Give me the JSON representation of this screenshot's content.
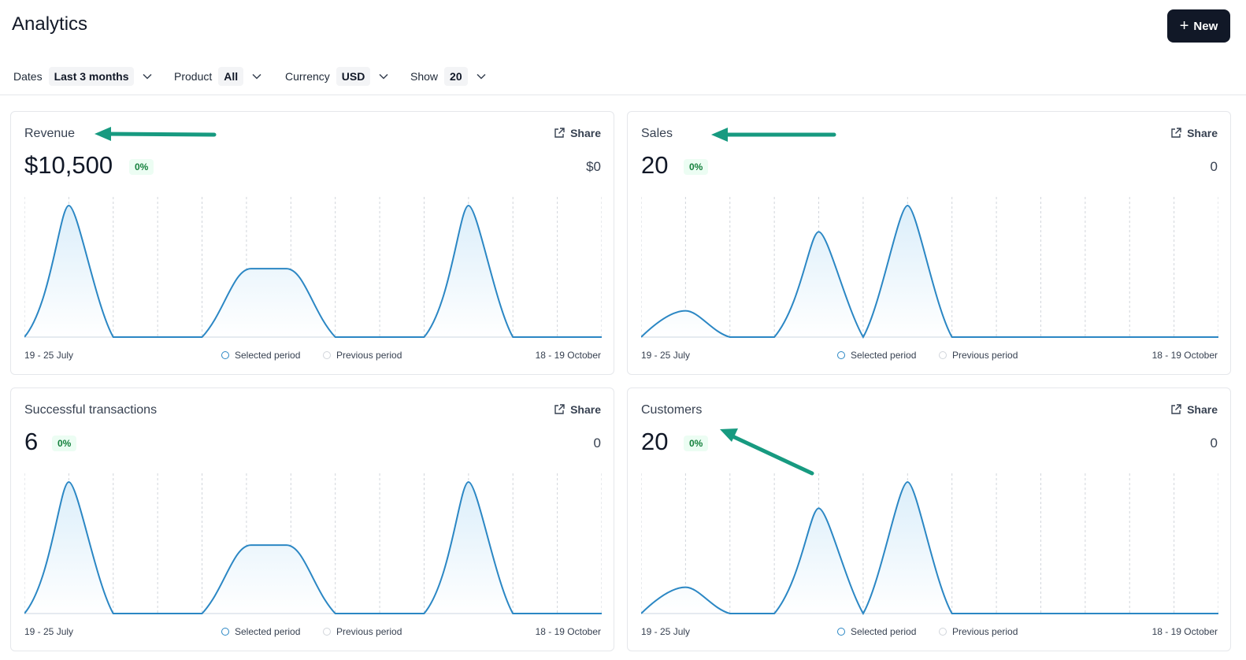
{
  "header": {
    "title": "Analytics",
    "new_button_label": "New"
  },
  "filters": [
    {
      "label": "Dates",
      "value": "Last 3 months"
    },
    {
      "label": "Product",
      "value": "All"
    },
    {
      "label": "Currency",
      "value": "USD"
    },
    {
      "label": "Show",
      "value": "20"
    }
  ],
  "common": {
    "share_label": "Share",
    "range_start": "19 - 25 July",
    "range_end": "18 - 19 October",
    "legend_selected": "Selected period",
    "legend_previous": "Previous period"
  },
  "colors": {
    "line": "#2b87c4",
    "fill": "#dbeefa",
    "badge_bg": "#ecfdf3",
    "badge_text": "#15803d",
    "annotation_arrow": "#179a80"
  },
  "cards": [
    {
      "title": "Revenue",
      "value": "$10,500",
      "change": "0%",
      "previous": "$0",
      "chart_data": {
        "type": "area",
        "x": [
          0,
          1,
          2,
          3,
          4,
          5,
          6,
          7,
          8,
          9,
          10,
          11,
          12,
          13
        ],
        "series": [
          {
            "values": [
              0,
              1,
              0,
              0,
              0,
              0.52,
              0.52,
              0,
              0,
              0,
              1,
              0,
              0,
              0
            ]
          }
        ],
        "ylim": [
          0,
          1
        ],
        "shape": "revenue"
      }
    },
    {
      "title": "Sales",
      "value": "20",
      "change": "0%",
      "previous": "0",
      "chart_data": {
        "type": "area",
        "x": [
          0,
          1,
          2,
          3,
          4,
          5,
          6,
          7,
          8,
          9,
          10,
          11,
          12,
          13
        ],
        "series": [
          {
            "values": [
              0,
              0.2,
              0,
              0,
              0,
              0.8,
              0,
              1,
              0,
              0,
              0,
              0,
              0,
              0
            ]
          }
        ],
        "ylim": [
          0,
          1
        ],
        "shape": "sales"
      }
    },
    {
      "title": "Successful transactions",
      "value": "6",
      "change": "0%",
      "previous": "0",
      "chart_data": {
        "type": "area",
        "x": [
          0,
          1,
          2,
          3,
          4,
          5,
          6,
          7,
          8,
          9,
          10,
          11,
          12,
          13
        ],
        "series": [
          {
            "values": [
              0,
              1,
              0,
              0,
              0,
              0.52,
              0.52,
              0,
              0,
              0,
              1,
              0,
              0,
              0
            ]
          }
        ],
        "ylim": [
          0,
          1
        ],
        "shape": "revenue"
      }
    },
    {
      "title": "Customers",
      "value": "20",
      "change": "0%",
      "previous": "0",
      "chart_data": {
        "type": "area",
        "x": [
          0,
          1,
          2,
          3,
          4,
          5,
          6,
          7,
          8,
          9,
          10,
          11,
          12,
          13
        ],
        "series": [
          {
            "values": [
              0,
              0.2,
              0,
              0,
              0,
              0.8,
              0,
              1,
              0,
              0,
              0,
              0,
              0,
              0
            ]
          }
        ],
        "ylim": [
          0,
          1
        ],
        "shape": "sales"
      }
    }
  ]
}
